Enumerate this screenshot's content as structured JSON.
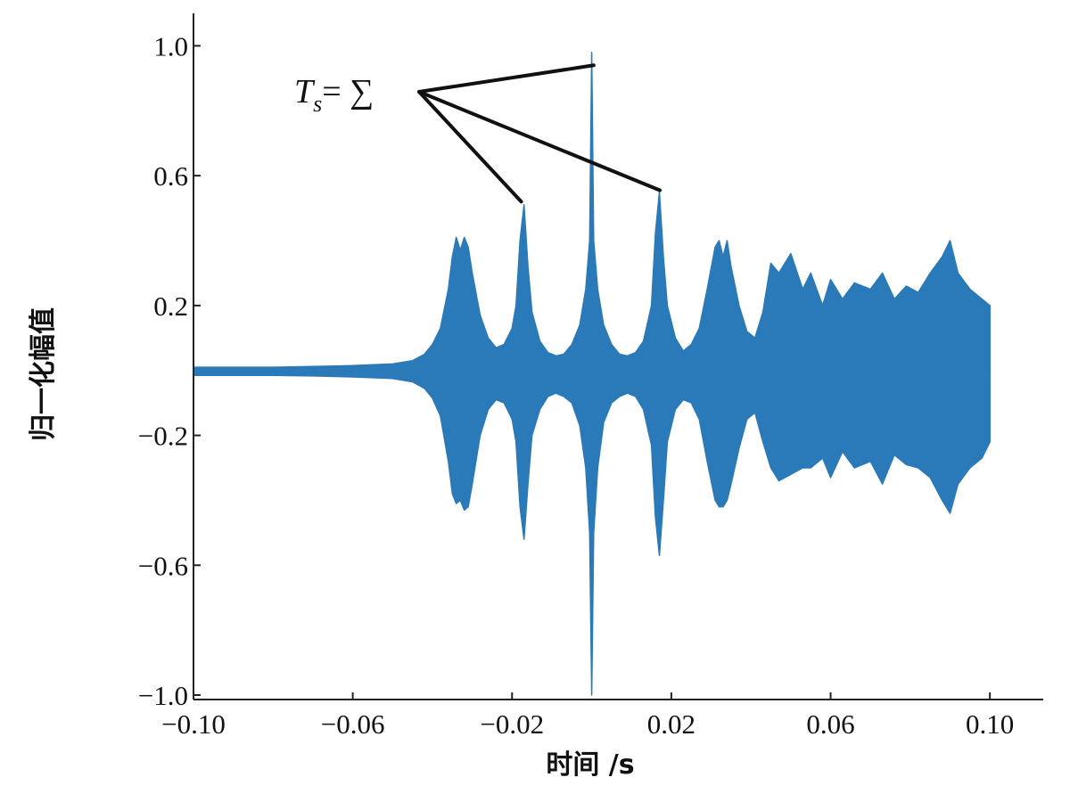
{
  "chart_data": {
    "type": "envelope",
    "color": "#2a79b8",
    "xlabel": "时间 /s",
    "ylabel": "归一化幅值",
    "xlim": [
      -0.1,
      0.1134
    ],
    "ylim": [
      -1.0137,
      1.1
    ],
    "xticks": [
      {
        "value": -0.1,
        "label": "−0.10"
      },
      {
        "value": -0.06,
        "label": "−0.06"
      },
      {
        "value": -0.02,
        "label": "−0.02"
      },
      0.02,
      0.06,
      {
        "value": 0.1,
        "label": "0.10"
      }
    ],
    "yticks": [
      {
        "value": 1,
        "label": "1.0"
      },
      0.6,
      0.2,
      {
        "value": -0.2,
        "label": "−0.2"
      },
      {
        "value": -0.6,
        "label": "−0.6"
      },
      {
        "value": -1,
        "label": "−1.0"
      }
    ],
    "x": [
      -0.1,
      -0.09,
      -0.08,
      -0.07,
      -0.06,
      -0.05,
      -0.045,
      -0.042,
      -0.04,
      -0.038,
      -0.036,
      -0.035,
      -0.034,
      -0.033,
      -0.032,
      -0.031,
      -0.03,
      -0.028,
      -0.026,
      -0.024,
      -0.022,
      -0.02,
      -0.019,
      -0.018,
      -0.017,
      -0.016,
      -0.015,
      -0.013,
      -0.011,
      -0.009,
      -0.007,
      -0.005,
      -0.003,
      -0.0015,
      -0.0005,
      0,
      0.0005,
      0.0015,
      0.003,
      0.005,
      0.007,
      0.009,
      0.011,
      0.013,
      0.015,
      0.016,
      0.017,
      0.018,
      0.019,
      0.021,
      0.023,
      0.025,
      0.027,
      0.029,
      0.031,
      0.032,
      0.033,
      0.034,
      0.035,
      0.037,
      0.039,
      0.041,
      0.043,
      0.045,
      0.047,
      0.05,
      0.053,
      0.055,
      0.058,
      0.06,
      0.063,
      0.066,
      0.07,
      0.073,
      0.076,
      0.079,
      0.082,
      0.085,
      0.088,
      0.09,
      0.092,
      0.095,
      0.098,
      0.1
    ],
    "upper": [
      0.01,
      0.01,
      0.01,
      0.012,
      0.015,
      0.02,
      0.03,
      0.05,
      0.08,
      0.13,
      0.25,
      0.35,
      0.41,
      0.37,
      0.41,
      0.38,
      0.3,
      0.17,
      0.1,
      0.07,
      0.08,
      0.13,
      0.2,
      0.4,
      0.51,
      0.32,
      0.18,
      0.09,
      0.055,
      0.045,
      0.05,
      0.08,
      0.14,
      0.25,
      0.4,
      0.98,
      0.4,
      0.25,
      0.14,
      0.08,
      0.05,
      0.045,
      0.055,
      0.09,
      0.2,
      0.42,
      0.55,
      0.35,
      0.2,
      0.1,
      0.06,
      0.08,
      0.13,
      0.25,
      0.38,
      0.4,
      0.35,
      0.4,
      0.32,
      0.2,
      0.12,
      0.1,
      0.18,
      0.33,
      0.3,
      0.36,
      0.25,
      0.3,
      0.2,
      0.28,
      0.22,
      0.27,
      0.25,
      0.3,
      0.22,
      0.26,
      0.24,
      0.3,
      0.35,
      0.4,
      0.3,
      0.25,
      0.22,
      0.2
    ],
    "lower": [
      -0.015,
      -0.015,
      -0.015,
      -0.017,
      -0.02,
      -0.025,
      -0.035,
      -0.055,
      -0.085,
      -0.14,
      -0.28,
      -0.38,
      -0.41,
      -0.4,
      -0.43,
      -0.42,
      -0.35,
      -0.2,
      -0.12,
      -0.09,
      -0.1,
      -0.15,
      -0.22,
      -0.42,
      -0.52,
      -0.35,
      -0.2,
      -0.12,
      -0.08,
      -0.07,
      -0.08,
      -0.1,
      -0.17,
      -0.3,
      -0.5,
      -1.0,
      -0.5,
      -0.3,
      -0.16,
      -0.1,
      -0.08,
      -0.07,
      -0.08,
      -0.12,
      -0.23,
      -0.45,
      -0.57,
      -0.4,
      -0.22,
      -0.12,
      -0.09,
      -0.1,
      -0.15,
      -0.28,
      -0.4,
      -0.42,
      -0.42,
      -0.4,
      -0.35,
      -0.24,
      -0.15,
      -0.13,
      -0.22,
      -0.3,
      -0.34,
      -0.32,
      -0.3,
      -0.3,
      -0.27,
      -0.33,
      -0.25,
      -0.3,
      -0.28,
      -0.35,
      -0.26,
      -0.29,
      -0.3,
      -0.33,
      -0.4,
      -0.44,
      -0.35,
      -0.3,
      -0.27,
      -0.22
    ],
    "annotation": {
      "text": "T",
      "subscript": "s",
      "rest": "= ∑",
      "points": [
        [
          0.0005,
          0.94
        ],
        [
          -0.0177,
          0.52
        ],
        [
          0.0171,
          0.555
        ]
      ]
    }
  }
}
